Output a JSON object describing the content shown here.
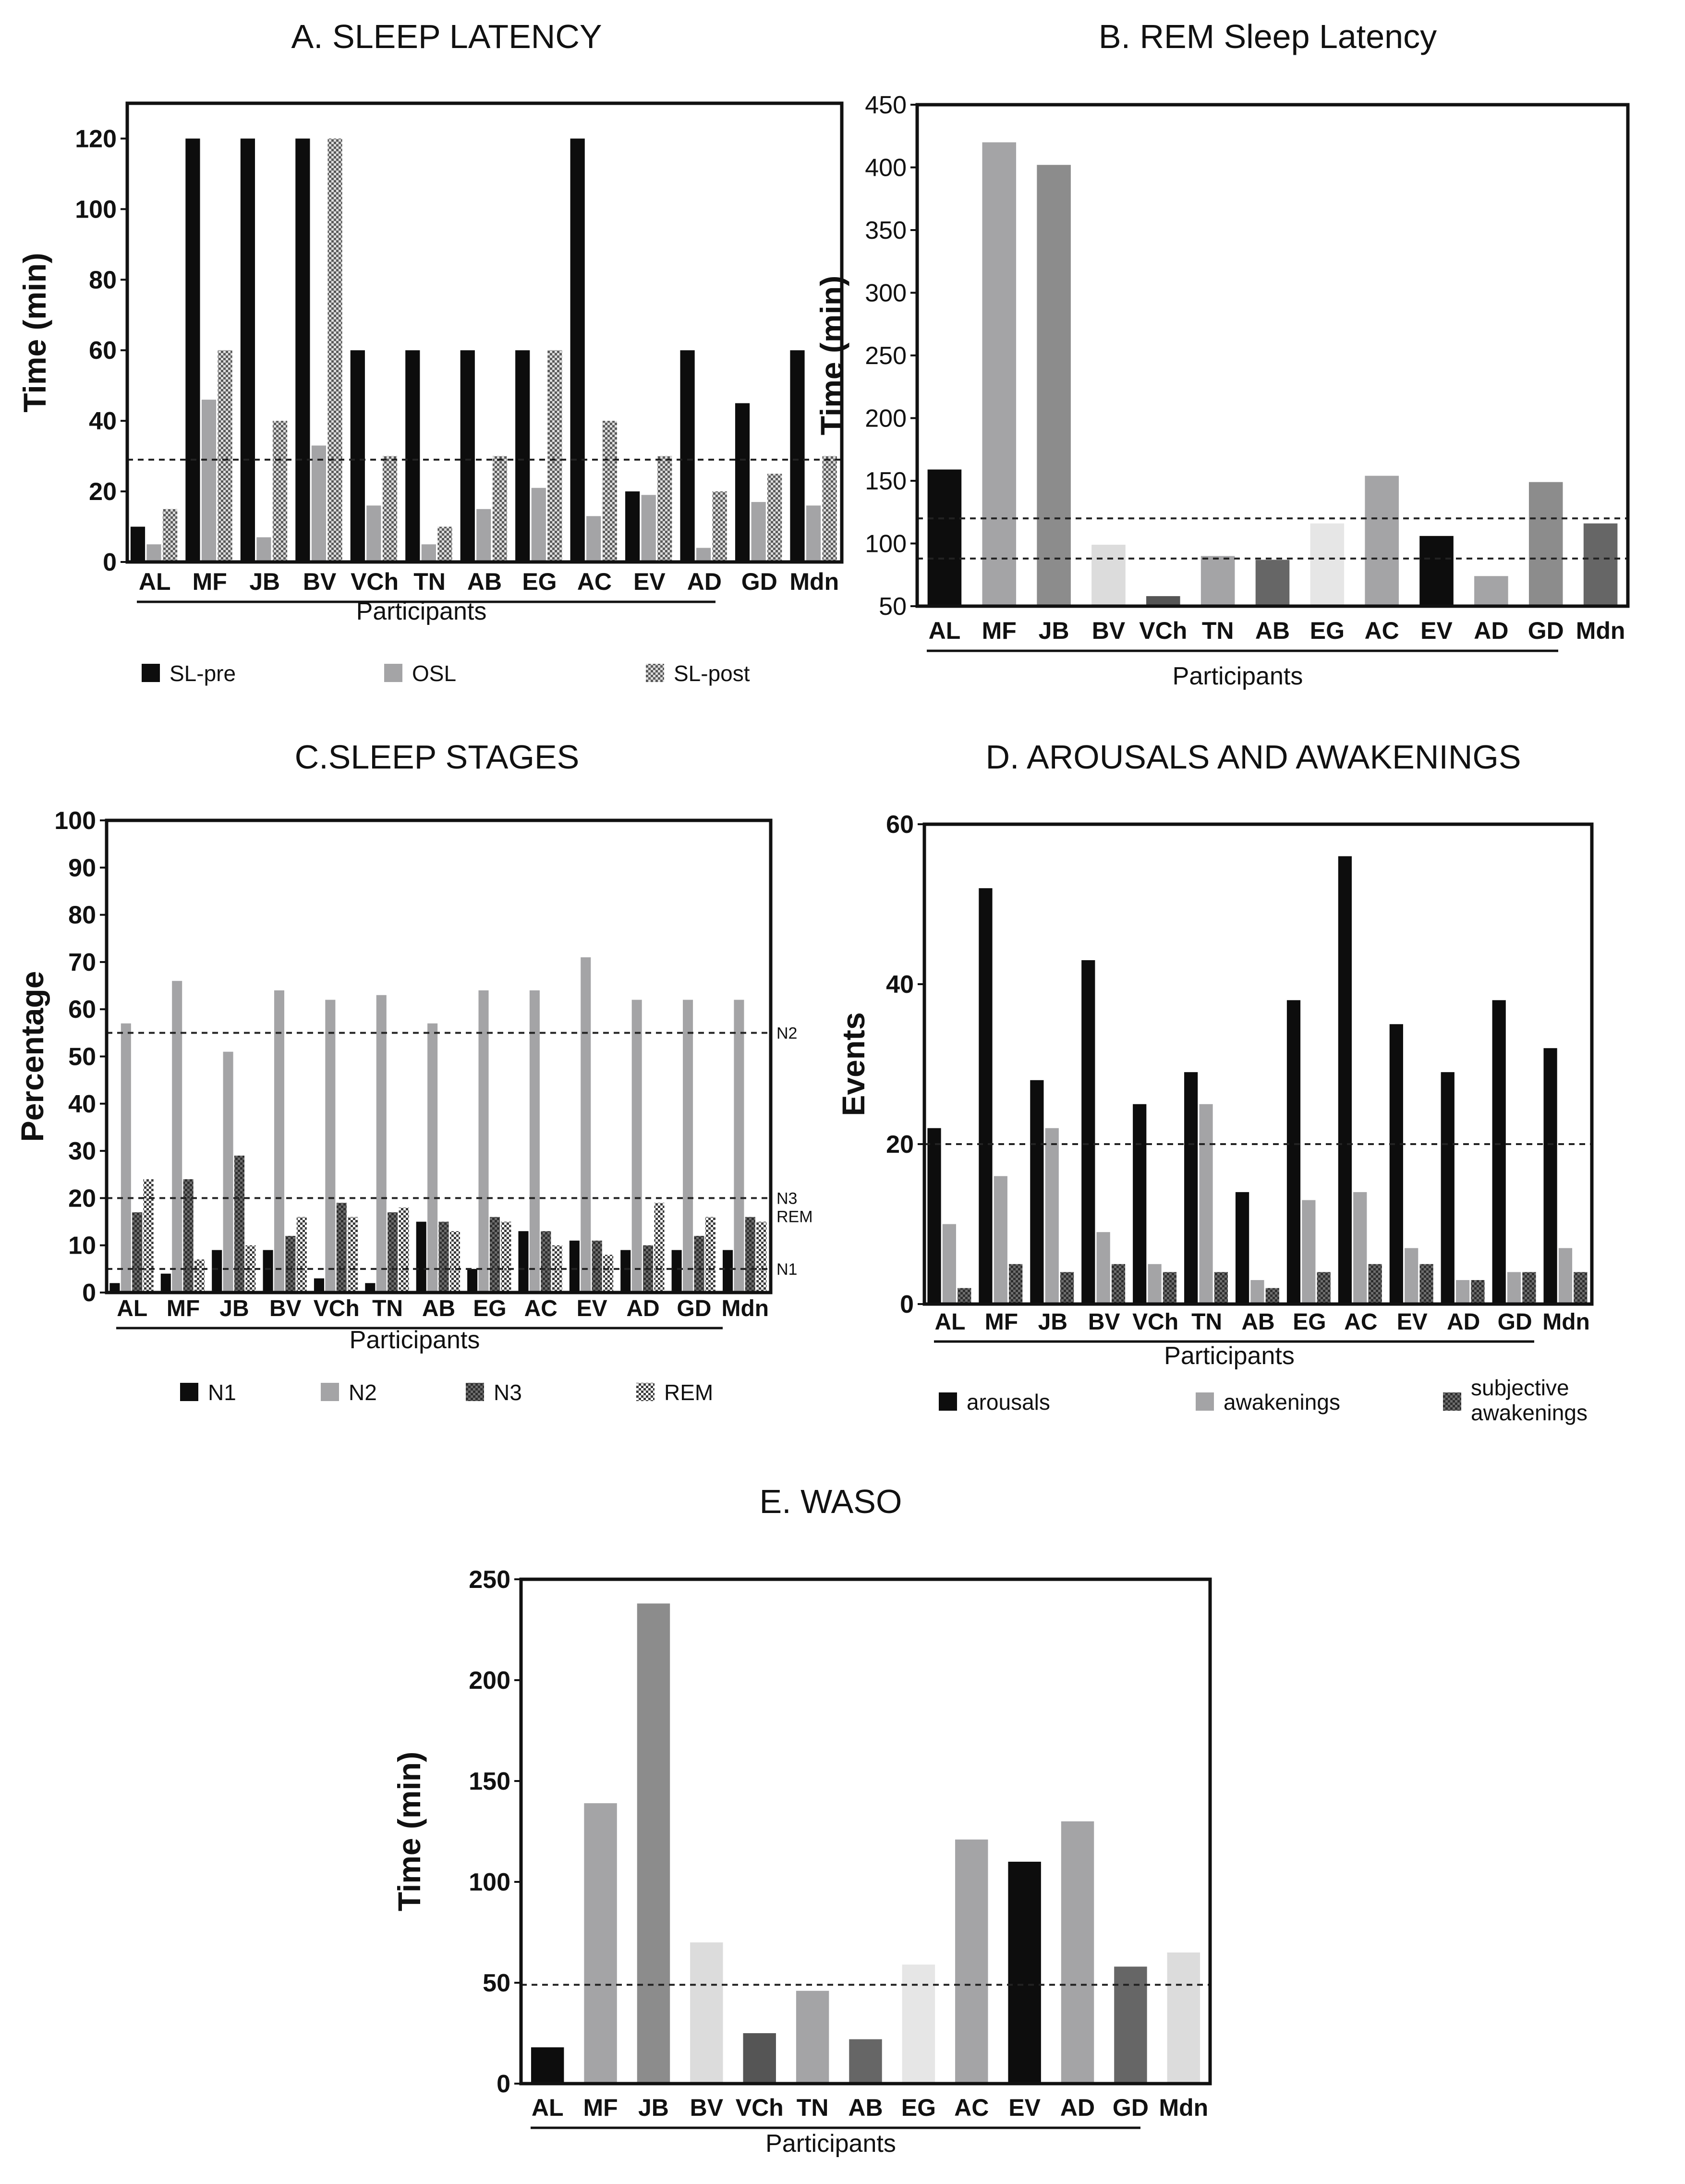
{
  "participants": [
    "AL",
    "MF",
    "JB",
    "BV",
    "VCh",
    "TN",
    "AB",
    "EG",
    "AC",
    "EV",
    "AD",
    "GD",
    "Mdn"
  ],
  "colors": {
    "black": "#0d0d0d",
    "gray": "#a4a4a6",
    "light": "#dcdcdc",
    "lighter": "#e6e6e6",
    "mid": "#8c8c8c",
    "dark": "#666666",
    "darker": "#555555",
    "axis": "#111111"
  },
  "chart_data": [
    {
      "id": "A",
      "type": "bar",
      "title": "A. SLEEP LATENCY",
      "xlabel": "Participants",
      "ylabel": "Time (min)",
      "ylim": [
        0,
        130
      ],
      "yticks": [
        0,
        20,
        40,
        60,
        80,
        100,
        120
      ],
      "reference_lines": [
        29
      ],
      "categories": [
        "AL",
        "MF",
        "JB",
        "BV",
        "VCh",
        "TN",
        "AB",
        "EG",
        "AC",
        "EV",
        "AD",
        "GD",
        "Mdn"
      ],
      "series": [
        {
          "name": "SL-pre",
          "pattern": "black",
          "values": [
            10,
            120,
            120,
            120,
            60,
            60,
            60,
            60,
            120,
            20,
            60,
            45,
            60
          ]
        },
        {
          "name": "OSL",
          "pattern": "gray",
          "values": [
            5,
            46,
            7,
            33,
            16,
            5,
            15,
            21,
            13,
            19,
            4,
            17,
            16
          ]
        },
        {
          "name": "SL-post",
          "pattern": "checker",
          "values": [
            15,
            60,
            40,
            120,
            30,
            10,
            30,
            60,
            40,
            30,
            20,
            25,
            30
          ]
        }
      ]
    },
    {
      "id": "B",
      "type": "bar",
      "title": "B. REM Sleep Latency",
      "xlabel": "Participants",
      "ylabel": "Time (min)",
      "ylim": [
        50,
        450
      ],
      "yticks": [
        50,
        100,
        150,
        200,
        250,
        300,
        350,
        400,
        450
      ],
      "reference_lines": [
        120,
        88
      ],
      "categories": [
        "AL",
        "MF",
        "JB",
        "BV",
        "VCh",
        "TN",
        "AB",
        "EG",
        "AC",
        "EV",
        "AD",
        "GD",
        "Mdn"
      ],
      "values": [
        159,
        420,
        402,
        99,
        58,
        90,
        87,
        116,
        154,
        106,
        74,
        149,
        116
      ],
      "bar_colors": [
        "black",
        "gray",
        "mid",
        "light",
        "darker",
        "gray",
        "dark",
        "lighter",
        "gray",
        "black",
        "gray",
        "mid",
        "dark"
      ]
    },
    {
      "id": "C",
      "type": "bar",
      "title": "C.SLEEP STAGES",
      "xlabel": "Participants",
      "ylabel": "Percentage",
      "ylim": [
        0,
        100
      ],
      "yticks": [
        0,
        10,
        20,
        30,
        40,
        50,
        60,
        70,
        80,
        90,
        100
      ],
      "reference_lines": [
        {
          "value": 55,
          "label": "N2"
        },
        {
          "value": 20,
          "label": "N3"
        },
        {
          "value": 5,
          "label": "N1"
        }
      ],
      "extra_labels": [
        "REM"
      ],
      "categories": [
        "AL",
        "MF",
        "JB",
        "BV",
        "VCh",
        "TN",
        "AB",
        "EG",
        "AC",
        "EV",
        "AD",
        "GD",
        "Mdn"
      ],
      "series": [
        {
          "name": "N1",
          "pattern": "black",
          "values": [
            2,
            4,
            9,
            9,
            3,
            2,
            15,
            5,
            13,
            11,
            9,
            9,
            9
          ]
        },
        {
          "name": "N2",
          "pattern": "gray",
          "values": [
            57,
            66,
            51,
            64,
            62,
            63,
            57,
            64,
            64,
            71,
            62,
            62,
            62
          ]
        },
        {
          "name": "N3",
          "pattern": "darkcheck",
          "values": [
            17,
            24,
            29,
            12,
            19,
            17,
            15,
            16,
            13,
            11,
            10,
            12,
            16
          ]
        },
        {
          "name": "REM",
          "pattern": "check",
          "values": [
            24,
            7,
            10,
            16,
            16,
            18,
            13,
            15,
            10,
            8,
            19,
            16,
            15
          ]
        }
      ]
    },
    {
      "id": "D",
      "type": "bar",
      "title": "D. AROUSALS AND AWAKENINGS",
      "xlabel": "Participants",
      "ylabel": "Events",
      "ylim": [
        0,
        60
      ],
      "yticks": [
        0,
        20,
        40,
        60
      ],
      "reference_lines": [
        20
      ],
      "categories": [
        "AL",
        "MF",
        "JB",
        "BV",
        "VCh",
        "TN",
        "AB",
        "EG",
        "AC",
        "EV",
        "AD",
        "GD",
        "Mdn"
      ],
      "series": [
        {
          "name": "arousals",
          "pattern": "black",
          "values": [
            22,
            52,
            28,
            43,
            25,
            29,
            14,
            38,
            56,
            35,
            29,
            38,
            32
          ]
        },
        {
          "name": "awakenings",
          "pattern": "gray",
          "values": [
            10,
            16,
            22,
            9,
            5,
            25,
            3,
            13,
            14,
            7,
            3,
            4,
            7
          ]
        },
        {
          "name": "subjective awakenings",
          "pattern": "darkcheck",
          "values": [
            2,
            5,
            4,
            5,
            4,
            4,
            2,
            4,
            5,
            5,
            3,
            4,
            4
          ]
        }
      ]
    },
    {
      "id": "E",
      "type": "bar",
      "title": "E. WASO",
      "xlabel": "Participants",
      "ylabel": "Time (min)",
      "ylim": [
        0,
        250
      ],
      "yticks": [
        0,
        50,
        100,
        150,
        200,
        250
      ],
      "reference_lines": [
        49
      ],
      "categories": [
        "AL",
        "MF",
        "JB",
        "BV",
        "VCh",
        "TN",
        "AB",
        "EG",
        "AC",
        "EV",
        "AD",
        "GD",
        "Mdn"
      ],
      "values": [
        18,
        139,
        238,
        70,
        25,
        46,
        22,
        59,
        121,
        110,
        130,
        58,
        65
      ],
      "bar_colors": [
        "black",
        "gray",
        "mid",
        "light",
        "darker",
        "gray",
        "dark",
        "lighter",
        "gray",
        "black",
        "gray",
        "dark",
        "light"
      ]
    }
  ]
}
